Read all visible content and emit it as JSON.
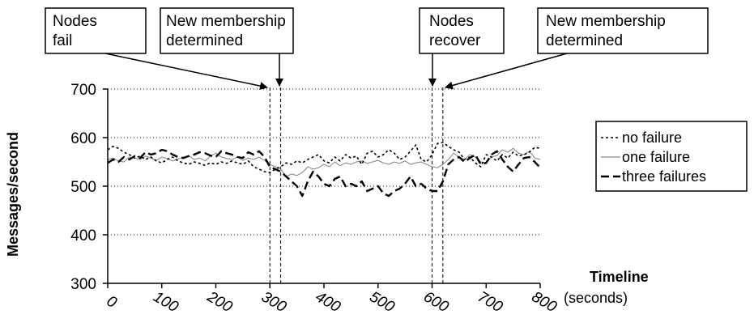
{
  "chart_data": {
    "type": "line",
    "xlabel": "Timeline",
    "xlabel_unit": "(seconds)",
    "ylabel": "Messages/second",
    "xlim": [
      0,
      800
    ],
    "ylim": [
      300,
      700
    ],
    "xticks": [
      "0",
      "100",
      "200",
      "300",
      "400",
      "500",
      "600",
      "700",
      "800"
    ],
    "yticks": [
      "300",
      "400",
      "500",
      "600",
      "700"
    ],
    "grid": "horizontal-dotted",
    "legend_position": "right",
    "series": [
      {
        "name": "no failure",
        "style": "dotted",
        "x": [
          0,
          10,
          20,
          30,
          40,
          50,
          60,
          70,
          80,
          90,
          100,
          110,
          120,
          130,
          140,
          150,
          160,
          170,
          180,
          190,
          200,
          210,
          220,
          230,
          240,
          250,
          260,
          270,
          280,
          290,
          300,
          310,
          320,
          330,
          340,
          350,
          360,
          370,
          380,
          390,
          400,
          410,
          420,
          430,
          440,
          450,
          460,
          470,
          480,
          490,
          500,
          510,
          520,
          530,
          540,
          550,
          560,
          570,
          580,
          590,
          600,
          610,
          620,
          630,
          640,
          650,
          660,
          670,
          680,
          690,
          700,
          710,
          720,
          730,
          740,
          750,
          760,
          770,
          780,
          790,
          800
        ],
        "y": [
          575,
          582,
          578,
          570,
          565,
          558,
          562,
          555,
          560,
          552,
          548,
          555,
          560,
          552,
          548,
          545,
          550,
          547,
          543,
          548,
          545,
          550,
          547,
          552,
          548,
          545,
          552,
          540,
          535,
          530,
          528,
          535,
          540,
          548,
          545,
          552,
          548,
          555,
          560,
          565,
          552,
          548,
          560,
          552,
          565,
          558,
          562,
          545,
          568,
          572,
          560,
          565,
          575,
          568,
          555,
          560,
          572,
          585,
          555,
          550,
          565,
          588,
          590,
          582,
          575,
          570,
          555,
          560,
          548,
          540,
          565,
          560,
          552,
          565,
          558,
          570,
          562,
          565,
          570,
          580,
          578
        ]
      },
      {
        "name": "one failure",
        "style": "thin-gray",
        "x": [
          0,
          10,
          20,
          30,
          40,
          50,
          60,
          70,
          80,
          90,
          100,
          110,
          120,
          130,
          140,
          150,
          160,
          170,
          180,
          190,
          200,
          210,
          220,
          230,
          240,
          250,
          260,
          270,
          280,
          290,
          300,
          310,
          320,
          330,
          340,
          350,
          360,
          370,
          380,
          390,
          400,
          410,
          420,
          430,
          440,
          450,
          460,
          470,
          480,
          490,
          500,
          510,
          520,
          530,
          540,
          550,
          560,
          570,
          580,
          590,
          600,
          610,
          620,
          630,
          640,
          650,
          660,
          670,
          680,
          690,
          700,
          710,
          720,
          730,
          740,
          750,
          760,
          770,
          780,
          790,
          800
        ],
        "y": [
          555,
          558,
          552,
          550,
          560,
          558,
          555,
          562,
          558,
          553,
          560,
          557,
          552,
          556,
          560,
          563,
          555,
          558,
          552,
          562,
          568,
          560,
          557,
          555,
          560,
          553,
          558,
          555,
          560,
          553,
          545,
          540,
          535,
          520,
          525,
          522,
          528,
          540,
          535,
          538,
          545,
          540,
          550,
          542,
          548,
          545,
          550,
          552,
          547,
          550,
          553,
          548,
          545,
          550,
          547,
          552,
          545,
          548,
          550,
          545,
          540,
          538,
          545,
          555,
          568,
          560,
          555,
          565,
          560,
          550,
          548,
          560,
          563,
          575,
          570,
          578,
          568,
          565,
          572,
          558,
          555
        ]
      },
      {
        "name": "three failures",
        "style": "dashed",
        "x": [
          0,
          10,
          20,
          30,
          40,
          50,
          60,
          70,
          80,
          90,
          100,
          110,
          120,
          130,
          140,
          150,
          160,
          170,
          180,
          190,
          200,
          210,
          220,
          230,
          240,
          250,
          260,
          270,
          280,
          290,
          300,
          310,
          320,
          330,
          340,
          350,
          360,
          370,
          380,
          390,
          400,
          410,
          420,
          430,
          440,
          450,
          460,
          470,
          480,
          490,
          500,
          510,
          520,
          530,
          540,
          550,
          560,
          570,
          580,
          590,
          600,
          610,
          620,
          630,
          640,
          650,
          660,
          670,
          680,
          690,
          700,
          710,
          720,
          730,
          740,
          750,
          760,
          770,
          780,
          790,
          800
        ],
        "y": [
          548,
          555,
          550,
          560,
          555,
          562,
          558,
          570,
          565,
          568,
          575,
          572,
          565,
          560,
          558,
          562,
          565,
          570,
          568,
          563,
          560,
          572,
          568,
          565,
          560,
          558,
          570,
          565,
          572,
          560,
          540,
          535,
          530,
          520,
          510,
          500,
          480,
          510,
          530,
          520,
          505,
          500,
          515,
          520,
          500,
          505,
          500,
          510,
          490,
          495,
          500,
          485,
          480,
          490,
          495,
          505,
          520,
          500,
          505,
          495,
          490,
          490,
          510,
          545,
          555,
          560,
          550,
          558,
          565,
          545,
          548,
          565,
          572,
          555,
          540,
          530,
          545,
          558,
          560,
          550,
          538
        ]
      }
    ],
    "annotations": [
      {
        "label": "Nodes fail",
        "x": 300
      },
      {
        "label": "New membership determined",
        "x": 320
      },
      {
        "label": "Nodes recover",
        "x": 600
      },
      {
        "label": "New membership determined",
        "x": 620
      }
    ]
  },
  "annotation_boxes": {
    "a1_line1": "Nodes",
    "a1_line2": "fail",
    "a2_line1": "New membership",
    "a2_line2": "determined",
    "a3_line1": "Nodes",
    "a3_line2": "recover",
    "a4_line1": "New membership",
    "a4_line2": "determined"
  },
  "legend": {
    "item1": "no failure",
    "item2": "one failure",
    "item3": "three failures"
  },
  "labels": {
    "ylabel": "Messages/second",
    "xlabel": "Timeline",
    "xlabel_unit": "(seconds)"
  }
}
